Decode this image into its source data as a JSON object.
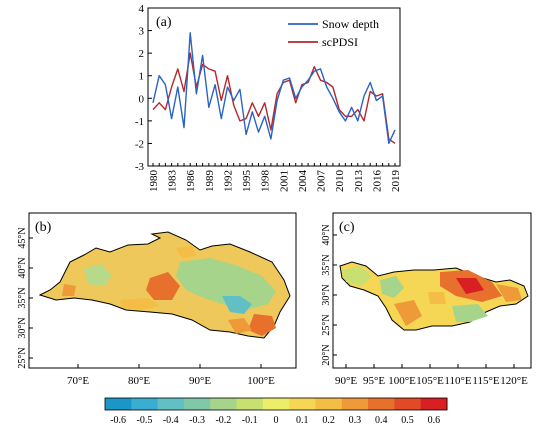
{
  "chart_data": [
    {
      "panel": "(a)",
      "type": "line",
      "x": [
        1980,
        1981,
        1982,
        1983,
        1984,
        1985,
        1986,
        1987,
        1988,
        1989,
        1990,
        1991,
        1992,
        1993,
        1994,
        1995,
        1996,
        1997,
        1998,
        1999,
        2000,
        2001,
        2002,
        2003,
        2004,
        2005,
        2006,
        2007,
        2008,
        2009,
        2010,
        2011,
        2012,
        2013,
        2014,
        2015,
        2016,
        2017,
        2018,
        2019
      ],
      "xticks": [
        "1980",
        "1983",
        "1986",
        "1989",
        "1992",
        "1995",
        "1998",
        "2001",
        "2004",
        "2007",
        "2010",
        "2013",
        "2016",
        "2019"
      ],
      "yticks": [
        "-3",
        "-2",
        "-1",
        "0",
        "1",
        "2",
        "3",
        "4"
      ],
      "ylim": [
        -3,
        4
      ],
      "legend_position": "top-right",
      "series": [
        {
          "name": "Snow depth",
          "color": "#2a63c6",
          "values": [
            -0.2,
            1.0,
            0.6,
            -0.9,
            0.5,
            -1.3,
            2.9,
            0.2,
            1.9,
            -0.4,
            0.6,
            -0.9,
            0.5,
            -0.1,
            0.4,
            -1.6,
            -0.6,
            -1.5,
            -0.8,
            -1.8,
            -0.1,
            0.8,
            0.9,
            0.0,
            0.5,
            0.8,
            1.2,
            1.3,
            0.5,
            0.0,
            -0.6,
            -1.0,
            -0.4,
            -1.0,
            0.1,
            0.7,
            -0.1,
            0.1,
            -2.0,
            -1.4
          ]
        },
        {
          "name": "scPDSI",
          "color": "#b4282c",
          "values": [
            -0.5,
            -0.2,
            -0.5,
            0.5,
            1.3,
            0.3,
            2.0,
            0.5,
            1.5,
            1.3,
            1.2,
            -0.1,
            1.0,
            -0.3,
            -1.0,
            -0.9,
            -0.2,
            -0.8,
            -0.2,
            -1.4,
            0.2,
            0.7,
            0.8,
            -0.2,
            0.6,
            0.7,
            1.4,
            0.8,
            0.7,
            0.5,
            -0.5,
            -0.8,
            -0.8,
            -0.5,
            -1.0,
            0.3,
            0.1,
            0.2,
            -1.8,
            -2.0
          ]
        }
      ]
    },
    {
      "panel": "(b)",
      "type": "heatmap",
      "lat_ticks": [
        "25°N",
        "30°N",
        "35°N",
        "40°N",
        "45°N"
      ],
      "lon_ticks": [
        "70°E",
        "80°E",
        "90°E",
        "100°E"
      ]
    },
    {
      "panel": "(c)",
      "type": "heatmap",
      "lat_ticks": [
        "20°N",
        "25°N",
        "30°N",
        "35°N",
        "40°N"
      ],
      "lon_ticks": [
        "90°E",
        "95°E",
        "100°E",
        "105°E",
        "110°E",
        "115°E",
        "120°E"
      ]
    },
    {
      "type": "colorbar",
      "labels": [
        "-0.6",
        "-0.5",
        "-0.4",
        "-0.3",
        "-0.2",
        "-0.1",
        "0",
        "0.1",
        "0.2",
        "0.3",
        "0.4",
        "0.5",
        "0.6"
      ],
      "colors": [
        "#1a96c8",
        "#3aaed0",
        "#62c0c4",
        "#80c8a8",
        "#a6d48a",
        "#c8e070",
        "#eced68",
        "#f6d655",
        "#f4bd45",
        "#ef9a38",
        "#e6702c",
        "#e04a26",
        "#d81f24"
      ]
    }
  ]
}
